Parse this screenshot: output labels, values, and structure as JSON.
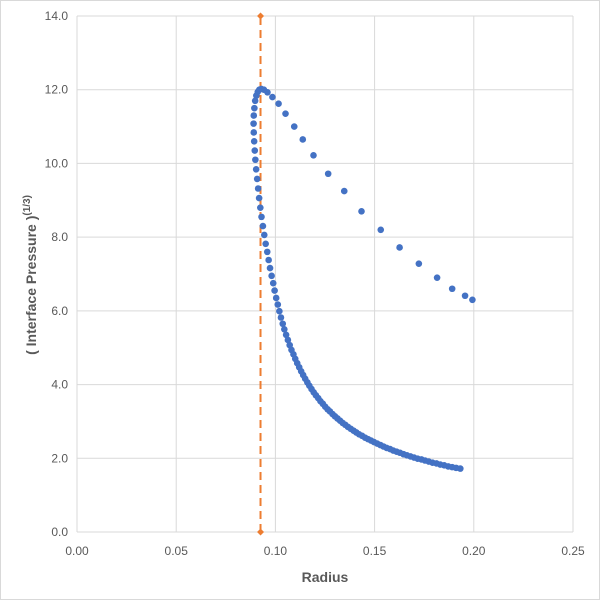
{
  "chart_data": {
    "type": "scatter",
    "xlabel": "Radius",
    "ylabel_main": "( Interface Pressure )",
    "ylabel_sup": "(1/3)",
    "xlim": [
      0,
      0.25
    ],
    "ylim": [
      0,
      14
    ],
    "x_ticks": [
      "0.00",
      "0.05",
      "0.10",
      "0.15",
      "0.20",
      "0.25"
    ],
    "y_ticks": [
      "0.0",
      "2.0",
      "4.0",
      "6.0",
      "8.0",
      "10.0",
      "12.0",
      "14.0"
    ],
    "grid": true,
    "legend": "none",
    "colors": {
      "points": "#4472c4",
      "reference": "#ed7d31"
    },
    "reference_line": {
      "x": 0.0925,
      "y0": 0,
      "y1": 14,
      "style": "dashed"
    },
    "series": [
      {
        "points": [
          [
            0.1993,
            6.3
          ],
          [
            0.1956,
            6.41
          ],
          [
            0.1891,
            6.6
          ],
          [
            0.1815,
            6.9
          ],
          [
            0.1723,
            7.28
          ],
          [
            0.1626,
            7.72
          ],
          [
            0.1531,
            8.2
          ],
          [
            0.1434,
            8.7
          ],
          [
            0.1347,
            9.25
          ],
          [
            0.1266,
            9.72
          ],
          [
            0.1192,
            10.22
          ],
          [
            0.1138,
            10.65
          ],
          [
            0.1095,
            11.0
          ],
          [
            0.1051,
            11.35
          ],
          [
            0.1016,
            11.62
          ],
          [
            0.0985,
            11.8
          ],
          [
            0.096,
            11.93
          ],
          [
            0.0942,
            12.0
          ],
          [
            0.0929,
            12.02
          ],
          [
            0.0919,
            12.0
          ],
          [
            0.0911,
            11.94
          ],
          [
            0.0904,
            11.84
          ],
          [
            0.0898,
            11.7
          ],
          [
            0.0894,
            11.5
          ],
          [
            0.0891,
            11.3
          ],
          [
            0.089,
            11.08
          ],
          [
            0.0891,
            10.84
          ],
          [
            0.0893,
            10.6
          ],
          [
            0.0896,
            10.35
          ],
          [
            0.0899,
            10.1
          ],
          [
            0.0903,
            9.84
          ],
          [
            0.0908,
            9.58
          ],
          [
            0.0913,
            9.32
          ],
          [
            0.0918,
            9.06
          ],
          [
            0.0924,
            8.8
          ],
          [
            0.093,
            8.55
          ],
          [
            0.0937,
            8.3
          ],
          [
            0.0944,
            8.06
          ],
          [
            0.0951,
            7.82
          ],
          [
            0.0959,
            7.6
          ],
          [
            0.0966,
            7.38
          ],
          [
            0.0973,
            7.16
          ],
          [
            0.0981,
            6.95
          ],
          [
            0.0989,
            6.75
          ],
          [
            0.0996,
            6.55
          ],
          [
            0.1004,
            6.35
          ],
          [
            0.1012,
            6.17
          ],
          [
            0.102,
            5.99
          ],
          [
            0.1028,
            5.82
          ],
          [
            0.1037,
            5.65
          ],
          [
            0.1045,
            5.5
          ],
          [
            0.1054,
            5.35
          ],
          [
            0.1063,
            5.21
          ],
          [
            0.1072,
            5.07
          ],
          [
            0.1081,
            4.94
          ],
          [
            0.1091,
            4.82
          ],
          [
            0.11,
            4.7
          ],
          [
            0.111,
            4.58
          ],
          [
            0.112,
            4.47
          ],
          [
            0.113,
            4.36
          ],
          [
            0.114,
            4.26
          ],
          [
            0.115,
            4.16
          ],
          [
            0.1161,
            4.06
          ],
          [
            0.1171,
            3.97
          ],
          [
            0.1182,
            3.88
          ],
          [
            0.1193,
            3.79
          ],
          [
            0.1204,
            3.71
          ],
          [
            0.1216,
            3.63
          ],
          [
            0.1227,
            3.55
          ],
          [
            0.1239,
            3.48
          ],
          [
            0.1251,
            3.4
          ],
          [
            0.1263,
            3.33
          ],
          [
            0.1275,
            3.27
          ],
          [
            0.1288,
            3.2
          ],
          [
            0.13,
            3.14
          ],
          [
            0.1313,
            3.08
          ],
          [
            0.1326,
            3.02
          ],
          [
            0.1339,
            2.96
          ],
          [
            0.1352,
            2.91
          ],
          [
            0.1366,
            2.85
          ],
          [
            0.138,
            2.8
          ],
          [
            0.1394,
            2.75
          ],
          [
            0.1408,
            2.7
          ],
          [
            0.1422,
            2.65
          ],
          [
            0.1437,
            2.61
          ],
          [
            0.1452,
            2.56
          ],
          [
            0.1467,
            2.52
          ],
          [
            0.1482,
            2.48
          ],
          [
            0.1497,
            2.44
          ],
          [
            0.1513,
            2.4
          ],
          [
            0.1529,
            2.36
          ],
          [
            0.1545,
            2.32
          ],
          [
            0.1561,
            2.28
          ],
          [
            0.1578,
            2.25
          ],
          [
            0.1594,
            2.21
          ],
          [
            0.1611,
            2.18
          ],
          [
            0.1628,
            2.15
          ],
          [
            0.1646,
            2.11
          ],
          [
            0.1663,
            2.08
          ],
          [
            0.1681,
            2.05
          ],
          [
            0.1699,
            2.02
          ],
          [
            0.1717,
            1.99
          ],
          [
            0.1736,
            1.97
          ],
          [
            0.1754,
            1.94
          ],
          [
            0.1773,
            1.91
          ],
          [
            0.1792,
            1.88
          ],
          [
            0.1812,
            1.86
          ],
          [
            0.1831,
            1.83
          ],
          [
            0.1851,
            1.81
          ],
          [
            0.1871,
            1.78
          ],
          [
            0.1891,
            1.76
          ],
          [
            0.1911,
            1.74
          ],
          [
            0.1932,
            1.72
          ]
        ]
      }
    ]
  }
}
